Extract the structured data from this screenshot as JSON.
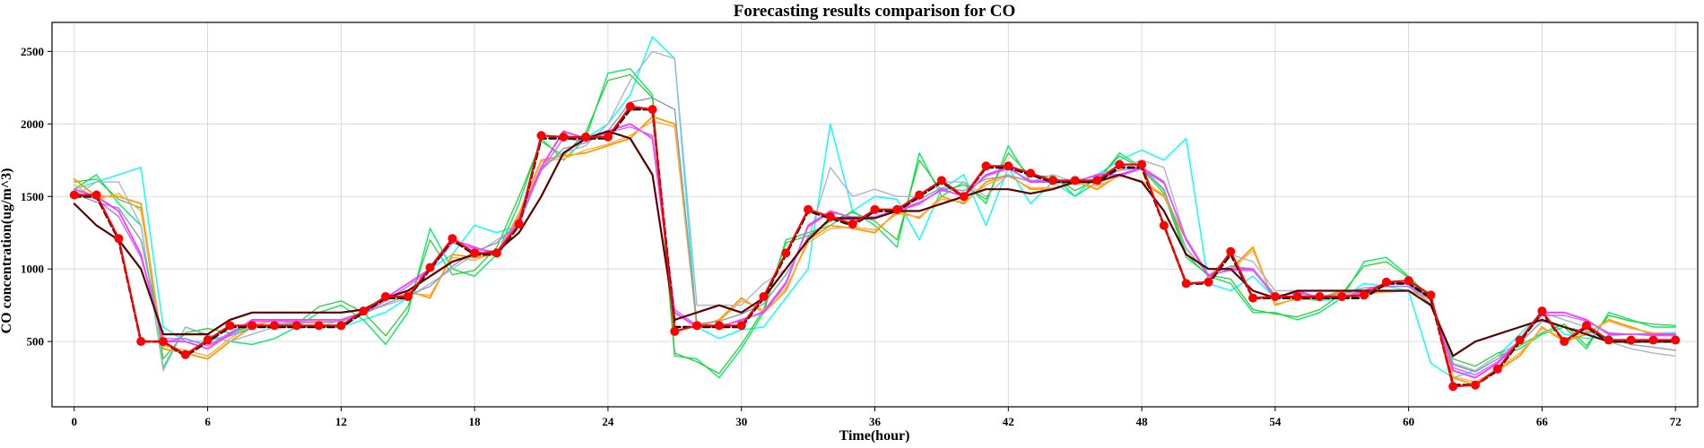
{
  "chart_data": {
    "type": "line",
    "title": "Forecasting results comparison for CO",
    "xlabel": "Time(hour)",
    "ylabel": "CO concentration(ug/m^3)",
    "xlim": [
      -1,
      73
    ],
    "ylim": [
      50,
      2700
    ],
    "x_ticks": [
      0,
      6,
      12,
      18,
      24,
      30,
      36,
      42,
      48,
      54,
      60,
      66,
      72
    ],
    "y_ticks": [
      500,
      1000,
      1500,
      2000,
      2500
    ],
    "grid": true,
    "x": [
      0,
      1,
      2,
      3,
      4,
      5,
      6,
      7,
      8,
      9,
      10,
      11,
      12,
      13,
      14,
      15,
      16,
      17,
      18,
      19,
      20,
      21,
      22,
      23,
      24,
      25,
      26,
      27,
      28,
      29,
      30,
      31,
      32,
      33,
      34,
      35,
      36,
      37,
      38,
      39,
      40,
      41,
      42,
      43,
      44,
      45,
      46,
      47,
      48,
      49,
      50,
      51,
      52,
      53,
      54,
      55,
      56,
      57,
      58,
      59,
      60,
      61,
      62,
      63,
      64,
      65,
      66,
      67,
      68,
      69,
      70,
      71,
      72
    ],
    "series": [
      {
        "color": "#00ffff",
        "width": 1.4,
        "values": [
          1550,
          1600,
          1650,
          1700,
          600,
          500,
          500,
          550,
          600,
          600,
          600,
          600,
          600,
          650,
          700,
          800,
          1000,
          1100,
          1300,
          1250,
          1300,
          1700,
          1800,
          1900,
          2000,
          2200,
          2600,
          2450,
          600,
          520,
          580,
          600,
          800,
          1000,
          2000,
          1400,
          1500,
          1480,
          1200,
          1550,
          1650,
          1300,
          1700,
          1450,
          1600,
          1500,
          1650,
          1750,
          1820,
          1750,
          1900,
          900,
          850,
          950,
          800,
          800,
          780,
          800,
          900,
          880,
          850,
          350,
          250,
          300,
          400,
          550,
          700,
          550,
          520,
          540,
          550,
          560,
          560
        ]
      },
      {
        "color": "#00ee66",
        "width": 1.4,
        "values": [
          1550,
          1650,
          1450,
          1300,
          320,
          600,
          540,
          500,
          480,
          520,
          600,
          700,
          750,
          650,
          480,
          700,
          1280,
          1000,
          950,
          1100,
          1450,
          1900,
          1750,
          1900,
          2350,
          2380,
          2200,
          400,
          380,
          250,
          450,
          700,
          1200,
          1250,
          1300,
          1400,
          1300,
          1150,
          1800,
          1500,
          1600,
          1450,
          1850,
          1600,
          1650,
          1500,
          1600,
          1800,
          1700,
          1550,
          1100,
          950,
          900,
          700,
          700,
          650,
          700,
          800,
          1050,
          1080,
          950,
          800,
          350,
          300,
          400,
          450,
          550,
          600,
          450,
          700,
          650,
          600,
          600
        ]
      },
      {
        "color": "#22cc22",
        "width": 1.2,
        "values": [
          1600,
          1620,
          1480,
          1420,
          380,
          560,
          590,
          560,
          610,
          610,
          620,
          740,
          780,
          700,
          540,
          740,
          1200,
          960,
          990,
          1150,
          1500,
          1880,
          1780,
          1940,
          2300,
          2340,
          2180,
          420,
          360,
          280,
          480,
          720,
          1180,
          1230,
          1330,
          1390,
          1330,
          1200,
          1750,
          1540,
          1580,
          1480,
          1800,
          1640,
          1640,
          1540,
          1620,
          1780,
          1690,
          1520,
          1080,
          960,
          930,
          720,
          690,
          670,
          720,
          830,
          1020,
          1050,
          940,
          780,
          380,
          330,
          420,
          470,
          560,
          620,
          470,
          680,
          640,
          620,
          610
        ]
      },
      {
        "color": "#ff9900",
        "width": 1.8,
        "values": [
          1620,
          1500,
          1500,
          1450,
          450,
          420,
          380,
          500,
          600,
          650,
          650,
          650,
          650,
          700,
          800,
          850,
          800,
          1100,
          1080,
          1100,
          1380,
          1750,
          1780,
          1800,
          1850,
          1900,
          2050,
          2000,
          600,
          650,
          800,
          700,
          850,
          1200,
          1300,
          1280,
          1250,
          1400,
          1350,
          1500,
          1450,
          1600,
          1650,
          1550,
          1550,
          1600,
          1550,
          1650,
          1600,
          1500,
          1200,
          950,
          1000,
          1150,
          750,
          800,
          800,
          850,
          820,
          850,
          850,
          800,
          250,
          200,
          300,
          400,
          600,
          500,
          550,
          650,
          600,
          550,
          550
        ]
      },
      {
        "color": "#ffaa44",
        "width": 1.4,
        "values": [
          1580,
          1480,
          1520,
          1400,
          470,
          440,
          400,
          520,
          620,
          640,
          630,
          640,
          640,
          690,
          790,
          830,
          820,
          1080,
          1060,
          1120,
          1360,
          1740,
          1760,
          1820,
          1860,
          1920,
          2020,
          1980,
          620,
          640,
          780,
          720,
          870,
          1180,
          1280,
          1290,
          1270,
          1380,
          1360,
          1480,
          1460,
          1580,
          1640,
          1560,
          1560,
          1590,
          1570,
          1640,
          1610,
          1510,
          1210,
          960,
          990,
          1130,
          760,
          790,
          790,
          840,
          830,
          840,
          850,
          790,
          260,
          220,
          310,
          420,
          590,
          520,
          560,
          640,
          590,
          560,
          550
        ]
      },
      {
        "color": "#aab4cc",
        "width": 1.4,
        "values": [
          1500,
          1600,
          1600,
          1300,
          300,
          600,
          550,
          500,
          550,
          600,
          600,
          600,
          650,
          700,
          750,
          800,
          900,
          1000,
          1100,
          1200,
          1300,
          1700,
          1800,
          1850,
          2000,
          2300,
          2500,
          2450,
          750,
          750,
          750,
          900,
          1000,
          1200,
          1700,
          1500,
          1550,
          1500,
          1500,
          1600,
          1600,
          1500,
          1650,
          1600,
          1650,
          1600,
          1650,
          1700,
          1750,
          1700,
          1200,
          950,
          1100,
          1050,
          850,
          850,
          800,
          820,
          850,
          900,
          900,
          750,
          350,
          300,
          400,
          500,
          700,
          650,
          600,
          500,
          450,
          420,
          400
        ]
      },
      {
        "color": "#8a9bb8",
        "width": 1.4,
        "values": [
          1520,
          1460,
          1420,
          1200,
          500,
          520,
          470,
          540,
          590,
          620,
          630,
          630,
          640,
          690,
          760,
          820,
          880,
          1020,
          1120,
          1180,
          1320,
          1680,
          1830,
          1870,
          1950,
          2150,
          2180,
          2100,
          620,
          640,
          690,
          760,
          960,
          1220,
          1340,
          1340,
          1350,
          1420,
          1480,
          1560,
          1540,
          1620,
          1640,
          1610,
          1600,
          1600,
          1620,
          1680,
          1700,
          1540,
          1140,
          960,
          1020,
          1000,
          820,
          830,
          810,
          830,
          870,
          880,
          880,
          760,
          340,
          290,
          380,
          490,
          640,
          600,
          570,
          520,
          480,
          460,
          440
        ]
      },
      {
        "color": "#ff33ff",
        "width": 1.8,
        "values": [
          1550,
          1500,
          1400,
          1100,
          500,
          500,
          450,
          550,
          650,
          650,
          650,
          650,
          650,
          700,
          800,
          900,
          1000,
          1200,
          1150,
          1100,
          1350,
          1700,
          1950,
          1900,
          1950,
          2000,
          1900,
          700,
          600,
          600,
          650,
          700,
          900,
          1300,
          1400,
          1350,
          1350,
          1400,
          1450,
          1550,
          1500,
          1650,
          1700,
          1600,
          1600,
          1600,
          1650,
          1650,
          1700,
          1600,
          1200,
          950,
          1000,
          1000,
          800,
          850,
          800,
          800,
          850,
          900,
          900,
          800,
          300,
          250,
          350,
          500,
          700,
          700,
          650,
          550,
          550,
          550,
          550
        ]
      },
      {
        "color": "#cc66ff",
        "width": 1.4,
        "values": [
          1530,
          1480,
          1360,
          1080,
          520,
          520,
          470,
          560,
          640,
          640,
          640,
          650,
          650,
          690,
          780,
          880,
          990,
          1180,
          1140,
          1120,
          1340,
          1680,
          1900,
          1880,
          1940,
          1980,
          1920,
          720,
          610,
          610,
          640,
          710,
          910,
          1290,
          1390,
          1360,
          1360,
          1410,
          1460,
          1540,
          1510,
          1640,
          1690,
          1610,
          1610,
          1610,
          1640,
          1640,
          1690,
          1590,
          1210,
          960,
          990,
          990,
          810,
          840,
          810,
          810,
          840,
          880,
          880,
          800,
          320,
          270,
          360,
          510,
          680,
          680,
          640,
          560,
          550,
          540,
          540
        ]
      },
      {
        "color": "#5a0000",
        "width": 2.2,
        "values": [
          1450,
          1300,
          1200,
          1000,
          550,
          550,
          550,
          650,
          700,
          700,
          700,
          700,
          700,
          720,
          800,
          850,
          950,
          1050,
          1100,
          1120,
          1250,
          1500,
          1800,
          1900,
          1950,
          1900,
          1650,
          650,
          700,
          750,
          700,
          800,
          1000,
          1200,
          1350,
          1350,
          1350,
          1400,
          1400,
          1450,
          1500,
          1550,
          1550,
          1520,
          1550,
          1600,
          1600,
          1650,
          1600,
          1400,
          1100,
          1000,
          1000,
          850,
          800,
          850,
          850,
          850,
          850,
          850,
          850,
          750,
          400,
          500,
          550,
          600,
          650,
          600,
          550,
          500,
          500,
          500,
          500
        ]
      },
      {
        "color": "#000000",
        "width": 2.6,
        "dash": "7,4",
        "values": [
          1500,
          1500,
          1200,
          500,
          500,
          400,
          500,
          600,
          600,
          600,
          600,
          600,
          600,
          700,
          800,
          800,
          1000,
          1200,
          1100,
          1100,
          1300,
          1900,
          1900,
          1900,
          1900,
          2100,
          2100,
          600,
          600,
          600,
          600,
          800,
          1100,
          1400,
          1350,
          1300,
          1400,
          1400,
          1500,
          1600,
          1500,
          1700,
          1700,
          1650,
          1600,
          1600,
          1600,
          1700,
          1700,
          1300,
          900,
          900,
          1100,
          800,
          800,
          800,
          800,
          800,
          800,
          900,
          900,
          800,
          200,
          200,
          300,
          500,
          700,
          500,
          600,
          500,
          500,
          500,
          500
        ]
      },
      {
        "color": "#ff0000",
        "width": 2.2,
        "markers": true,
        "values": [
          1510,
          1510,
          1210,
          500,
          500,
          410,
          510,
          610,
          610,
          610,
          610,
          610,
          610,
          710,
          810,
          810,
          1010,
          1210,
          1110,
          1110,
          1310,
          1920,
          1910,
          1910,
          1910,
          2120,
          2100,
          570,
          610,
          610,
          610,
          810,
          1110,
          1410,
          1360,
          1310,
          1410,
          1410,
          1510,
          1610,
          1500,
          1710,
          1710,
          1660,
          1610,
          1610,
          1610,
          1720,
          1720,
          1300,
          900,
          910,
          1120,
          800,
          810,
          810,
          810,
          810,
          820,
          910,
          920,
          820,
          190,
          200,
          310,
          510,
          710,
          500,
          610,
          510,
          510,
          510,
          510
        ]
      }
    ]
  }
}
